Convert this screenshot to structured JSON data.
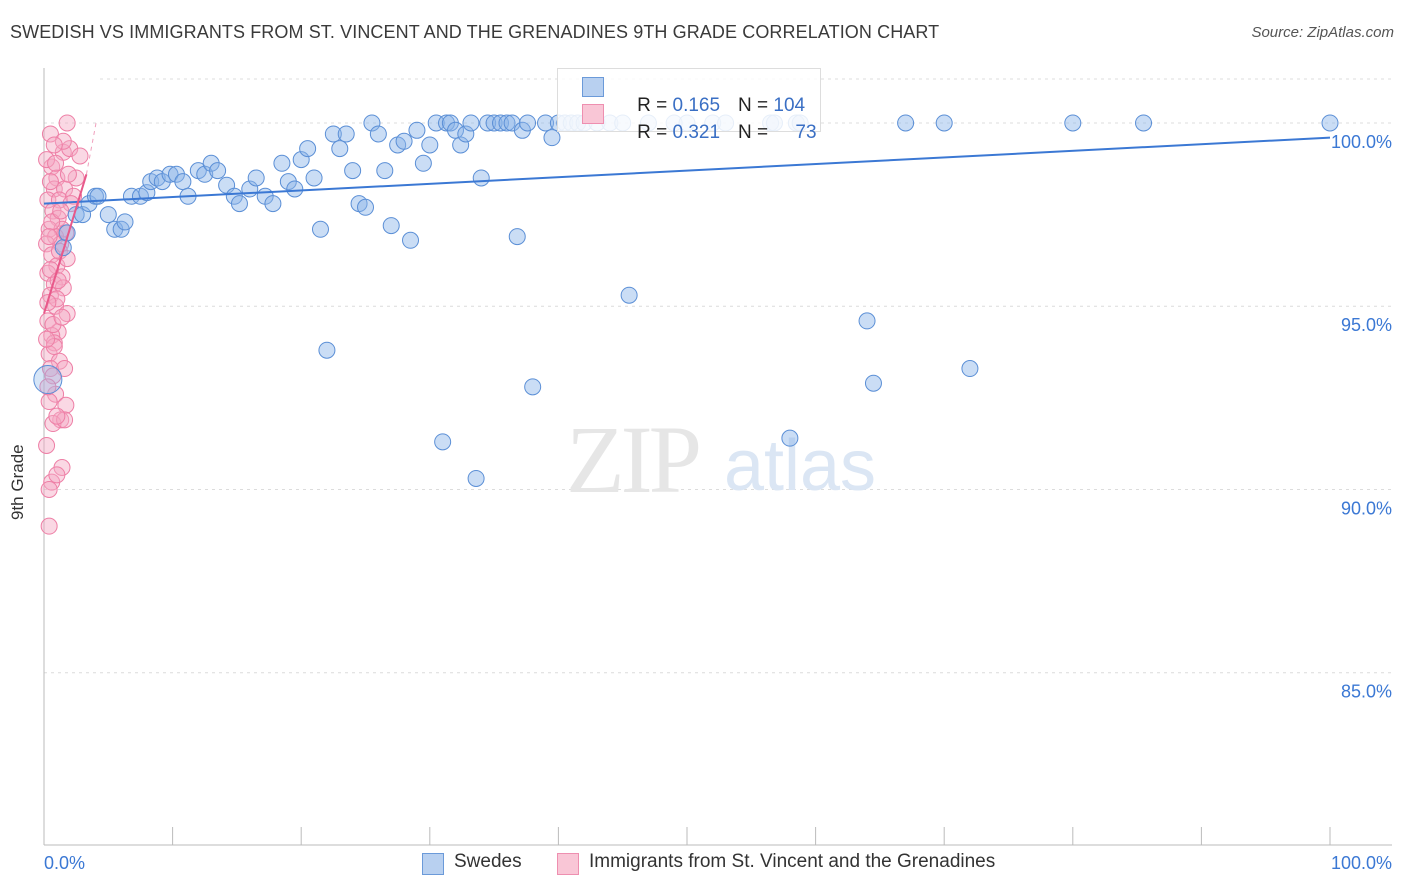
{
  "title": "SWEDISH VS IMMIGRANTS FROM ST. VINCENT AND THE GRENADINES 9TH GRADE CORRELATION CHART",
  "source": "Source: ZipAtlas.com",
  "watermark": {
    "zip": "ZIP",
    "atlas": "atlas"
  },
  "legend": {
    "swedes": {
      "r_label": "R = ",
      "r_value": "0.165",
      "n_label": "N = ",
      "n_value": "104"
    },
    "svg": {
      "r_label": "R = ",
      "r_value": "0.321",
      "n_label": "N = ",
      "n_value": "73"
    }
  },
  "bottom_legend": {
    "swedes": "Swedes",
    "svg": "Immigrants from St. Vincent and the Grenadines"
  },
  "chart_data": {
    "type": "scatter",
    "title": "SWEDISH VS IMMIGRANTS FROM ST. VINCENT AND THE GRENADINES 9TH GRADE CORRELATION CHART",
    "xlabel": "",
    "ylabel": "9th Grade",
    "xlim": [
      0,
      100
    ],
    "ylim": [
      80.3,
      101.5
    ],
    "x_ticks": [
      "0.0%",
      "100.0%"
    ],
    "y_ticks": [
      {
        "value": 85.0,
        "label": "85.0%"
      },
      {
        "value": 90.0,
        "label": "90.0%"
      },
      {
        "value": 95.0,
        "label": "95.0%"
      },
      {
        "value": 100.0,
        "label": "100.0%"
      }
    ],
    "grid": true,
    "legend_position": "top-center",
    "series": [
      {
        "name": "Swedes",
        "color": "#8ab4e8",
        "edge_color": "#5b8fd6",
        "trend_color": "#3b78d4",
        "trend": {
          "x": [
            0,
            100
          ],
          "y": [
            97.8,
            99.6
          ]
        },
        "points": [
          [
            0.3,
            93.0
          ],
          [
            1.5,
            96.6
          ],
          [
            1.8,
            97.0
          ],
          [
            2.5,
            97.5
          ],
          [
            3.0,
            97.5
          ],
          [
            3.5,
            97.8
          ],
          [
            4.0,
            98.0
          ],
          [
            4.2,
            98.0
          ],
          [
            5.0,
            97.5
          ],
          [
            5.5,
            97.1
          ],
          [
            6.0,
            97.1
          ],
          [
            6.3,
            97.3
          ],
          [
            6.8,
            98.0
          ],
          [
            7.5,
            98.0
          ],
          [
            8.0,
            98.1
          ],
          [
            8.3,
            98.4
          ],
          [
            8.8,
            98.5
          ],
          [
            9.2,
            98.4
          ],
          [
            9.8,
            98.6
          ],
          [
            10.3,
            98.6
          ],
          [
            10.8,
            98.4
          ],
          [
            11.2,
            98.0
          ],
          [
            12.0,
            98.7
          ],
          [
            12.5,
            98.6
          ],
          [
            13.0,
            98.9
          ],
          [
            13.5,
            98.7
          ],
          [
            14.2,
            98.3
          ],
          [
            14.8,
            98.0
          ],
          [
            15.2,
            97.8
          ],
          [
            16.0,
            98.2
          ],
          [
            16.5,
            98.5
          ],
          [
            17.2,
            98.0
          ],
          [
            17.8,
            97.8
          ],
          [
            18.5,
            98.9
          ],
          [
            19.0,
            98.4
          ],
          [
            19.5,
            98.2
          ],
          [
            20.0,
            99.0
          ],
          [
            20.5,
            99.3
          ],
          [
            21.0,
            98.5
          ],
          [
            21.5,
            97.1
          ],
          [
            22.0,
            93.8
          ],
          [
            22.5,
            99.7
          ],
          [
            23.0,
            99.3
          ],
          [
            23.5,
            99.7
          ],
          [
            24.0,
            98.7
          ],
          [
            24.5,
            97.8
          ],
          [
            25.0,
            97.7
          ],
          [
            25.5,
            100.0
          ],
          [
            26.0,
            99.7
          ],
          [
            26.5,
            98.7
          ],
          [
            27.0,
            97.2
          ],
          [
            27.5,
            99.4
          ],
          [
            28.0,
            99.5
          ],
          [
            28.5,
            96.8
          ],
          [
            29.0,
            99.8
          ],
          [
            29.5,
            98.9
          ],
          [
            30.0,
            99.4
          ],
          [
            30.5,
            100.0
          ],
          [
            31.0,
            91.3
          ],
          [
            31.3,
            100.0
          ],
          [
            31.6,
            100.0
          ],
          [
            32.0,
            99.8
          ],
          [
            32.4,
            99.4
          ],
          [
            32.8,
            99.7
          ],
          [
            33.2,
            100.0
          ],
          [
            33.6,
            90.3
          ],
          [
            34.0,
            98.5
          ],
          [
            34.5,
            100.0
          ],
          [
            35.0,
            100.0
          ],
          [
            35.5,
            100.0
          ],
          [
            36.0,
            100.0
          ],
          [
            36.4,
            100.0
          ],
          [
            36.8,
            96.9
          ],
          [
            37.2,
            99.8
          ],
          [
            37.6,
            100.0
          ],
          [
            38.0,
            92.8
          ],
          [
            39.0,
            100.0
          ],
          [
            39.5,
            99.6
          ],
          [
            40.0,
            100.0
          ],
          [
            40.5,
            100.0
          ],
          [
            41.0,
            100.0
          ],
          [
            41.5,
            100.0
          ],
          [
            42.0,
            100.0
          ],
          [
            43.0,
            100.0
          ],
          [
            44.0,
            100.0
          ],
          [
            45.0,
            100.0
          ],
          [
            45.5,
            95.3
          ],
          [
            47.0,
            100.0
          ],
          [
            49.0,
            100.0
          ],
          [
            50.0,
            100.0
          ],
          [
            52.0,
            100.0
          ],
          [
            53.0,
            100.0
          ],
          [
            56.5,
            100.0
          ],
          [
            56.8,
            100.0
          ],
          [
            58.0,
            91.4
          ],
          [
            58.5,
            100.0
          ],
          [
            58.8,
            100.0
          ],
          [
            64.0,
            94.6
          ],
          [
            64.5,
            92.9
          ],
          [
            67.0,
            100.0
          ],
          [
            70.0,
            100.0
          ],
          [
            72.0,
            93.3
          ],
          [
            80.0,
            100.0
          ],
          [
            85.5,
            100.0
          ],
          [
            100.0,
            100.0
          ]
        ]
      },
      {
        "name": "Immigrants from St. Vincent and the Grenadines",
        "color": "#f5a8c3",
        "edge_color": "#ee7fa6",
        "trend_color": "#e8598a",
        "trend": {
          "x": [
            0.0,
            3.3
          ],
          "y": [
            94.8,
            98.6
          ]
        },
        "points": [
          [
            1.8,
            100.0
          ],
          [
            0.5,
            99.7
          ],
          [
            1.5,
            99.2
          ],
          [
            2.0,
            99.3
          ],
          [
            2.8,
            99.1
          ],
          [
            0.6,
            98.8
          ],
          [
            1.0,
            98.5
          ],
          [
            2.5,
            98.5
          ],
          [
            0.8,
            98.2
          ],
          [
            1.6,
            98.2
          ],
          [
            0.3,
            97.9
          ],
          [
            1.2,
            97.9
          ],
          [
            0.7,
            97.6
          ],
          [
            1.1,
            97.4
          ],
          [
            0.4,
            97.1
          ],
          [
            1.4,
            97.1
          ],
          [
            0.9,
            96.9
          ],
          [
            0.2,
            96.7
          ],
          [
            1.3,
            96.7
          ],
          [
            0.6,
            96.4
          ],
          [
            1.0,
            96.1
          ],
          [
            0.3,
            95.9
          ],
          [
            1.4,
            95.8
          ],
          [
            0.8,
            95.6
          ],
          [
            1.5,
            95.5
          ],
          [
            0.5,
            95.3
          ],
          [
            0.9,
            95.0
          ],
          [
            1.8,
            94.8
          ],
          [
            0.3,
            94.6
          ],
          [
            1.1,
            94.3
          ],
          [
            0.6,
            94.2
          ],
          [
            0.8,
            94.0
          ],
          [
            0.4,
            93.7
          ],
          [
            1.2,
            93.5
          ],
          [
            0.5,
            93.3
          ],
          [
            1.6,
            93.3
          ],
          [
            0.9,
            92.6
          ],
          [
            0.4,
            92.4
          ],
          [
            1.7,
            92.3
          ],
          [
            1.3,
            91.9
          ],
          [
            0.7,
            91.8
          ],
          [
            1.6,
            91.9
          ],
          [
            0.2,
            91.2
          ],
          [
            1.4,
            90.6
          ],
          [
            0.6,
            90.2
          ],
          [
            0.4,
            90.0
          ],
          [
            0.4,
            89.0
          ],
          [
            2.3,
            98.0
          ],
          [
            0.2,
            99.0
          ],
          [
            1.9,
            98.6
          ],
          [
            0.5,
            96.0
          ],
          [
            1.0,
            95.2
          ],
          [
            0.7,
            94.5
          ],
          [
            1.2,
            96.5
          ],
          [
            0.3,
            95.1
          ],
          [
            1.7,
            97.0
          ],
          [
            2.1,
            97.8
          ],
          [
            0.8,
            93.9
          ],
          [
            1.0,
            92.0
          ],
          [
            0.6,
            97.3
          ],
          [
            1.5,
            99.5
          ],
          [
            0.9,
            98.9
          ],
          [
            0.4,
            96.9
          ],
          [
            1.1,
            95.7
          ],
          [
            0.2,
            94.1
          ],
          [
            1.3,
            97.6
          ],
          [
            0.7,
            93.1
          ],
          [
            1.8,
            96.3
          ],
          [
            0.5,
            98.4
          ],
          [
            1.0,
            90.4
          ],
          [
            0.3,
            92.8
          ],
          [
            1.4,
            94.7
          ],
          [
            0.8,
            99.4
          ]
        ]
      }
    ]
  }
}
